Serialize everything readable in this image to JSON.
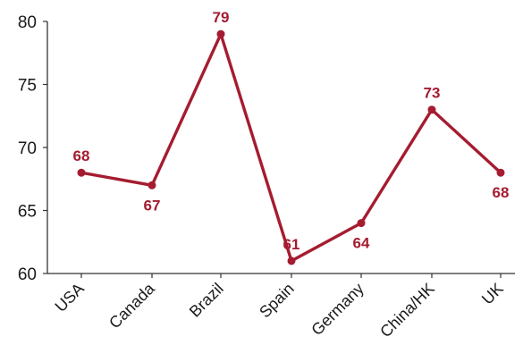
{
  "chart_data": {
    "type": "line",
    "categories": [
      "USA",
      "Canada",
      "Brazil",
      "Spain",
      "Germany",
      "China/HK",
      "UK"
    ],
    "series": [
      {
        "values": [
          68,
          67,
          79,
          61,
          64,
          73,
          68
        ],
        "data_labels": [
          "68",
          "67",
          "79",
          "61",
          "64",
          "73",
          "68"
        ]
      }
    ],
    "ylim": [
      60,
      80
    ],
    "y_ticks": [
      60,
      65,
      70,
      75,
      80
    ],
    "y_tick_labels": [
      "60",
      "65",
      "70",
      "75",
      "80"
    ],
    "grid": false,
    "line_color": "#A51C30",
    "label_positions": [
      "above",
      "below",
      "above",
      "above",
      "below",
      "above",
      "below"
    ]
  }
}
